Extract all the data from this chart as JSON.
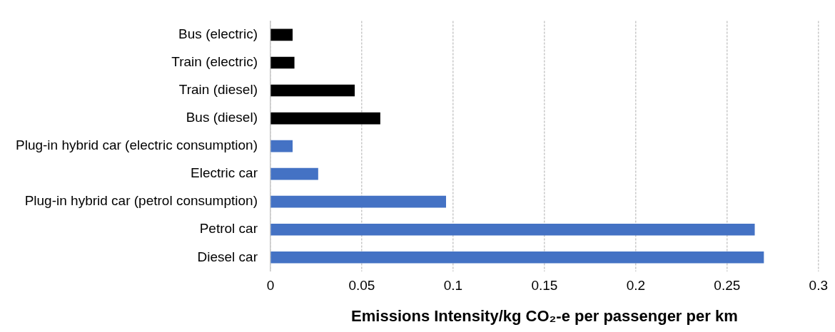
{
  "chart_data": {
    "type": "bar",
    "orientation": "horizontal",
    "categories": [
      "Bus (electric)",
      "Train (electric)",
      "Train (diesel)",
      "Bus (diesel)",
      "Plug-in hybrid car (electric consumption)",
      "Electric car",
      "Plug-in hybrid car (petrol consumption)",
      "Petrol car",
      "Diesel car"
    ],
    "values": [
      0.012,
      0.013,
      0.046,
      0.06,
      0.012,
      0.026,
      0.096,
      0.265,
      0.27
    ],
    "colors": [
      "#000000",
      "#000000",
      "#000000",
      "#000000",
      "#4472c4",
      "#4472c4",
      "#4472c4",
      "#4472c4",
      "#4472c4"
    ],
    "xlabel": "Emissions Intensity/kg CO₂-e per passenger per km",
    "xlim": [
      0,
      0.3
    ],
    "xticks": [
      0,
      0.05,
      0.1,
      0.15,
      0.2,
      0.25,
      0.3
    ],
    "grid": "x",
    "legend": false
  }
}
